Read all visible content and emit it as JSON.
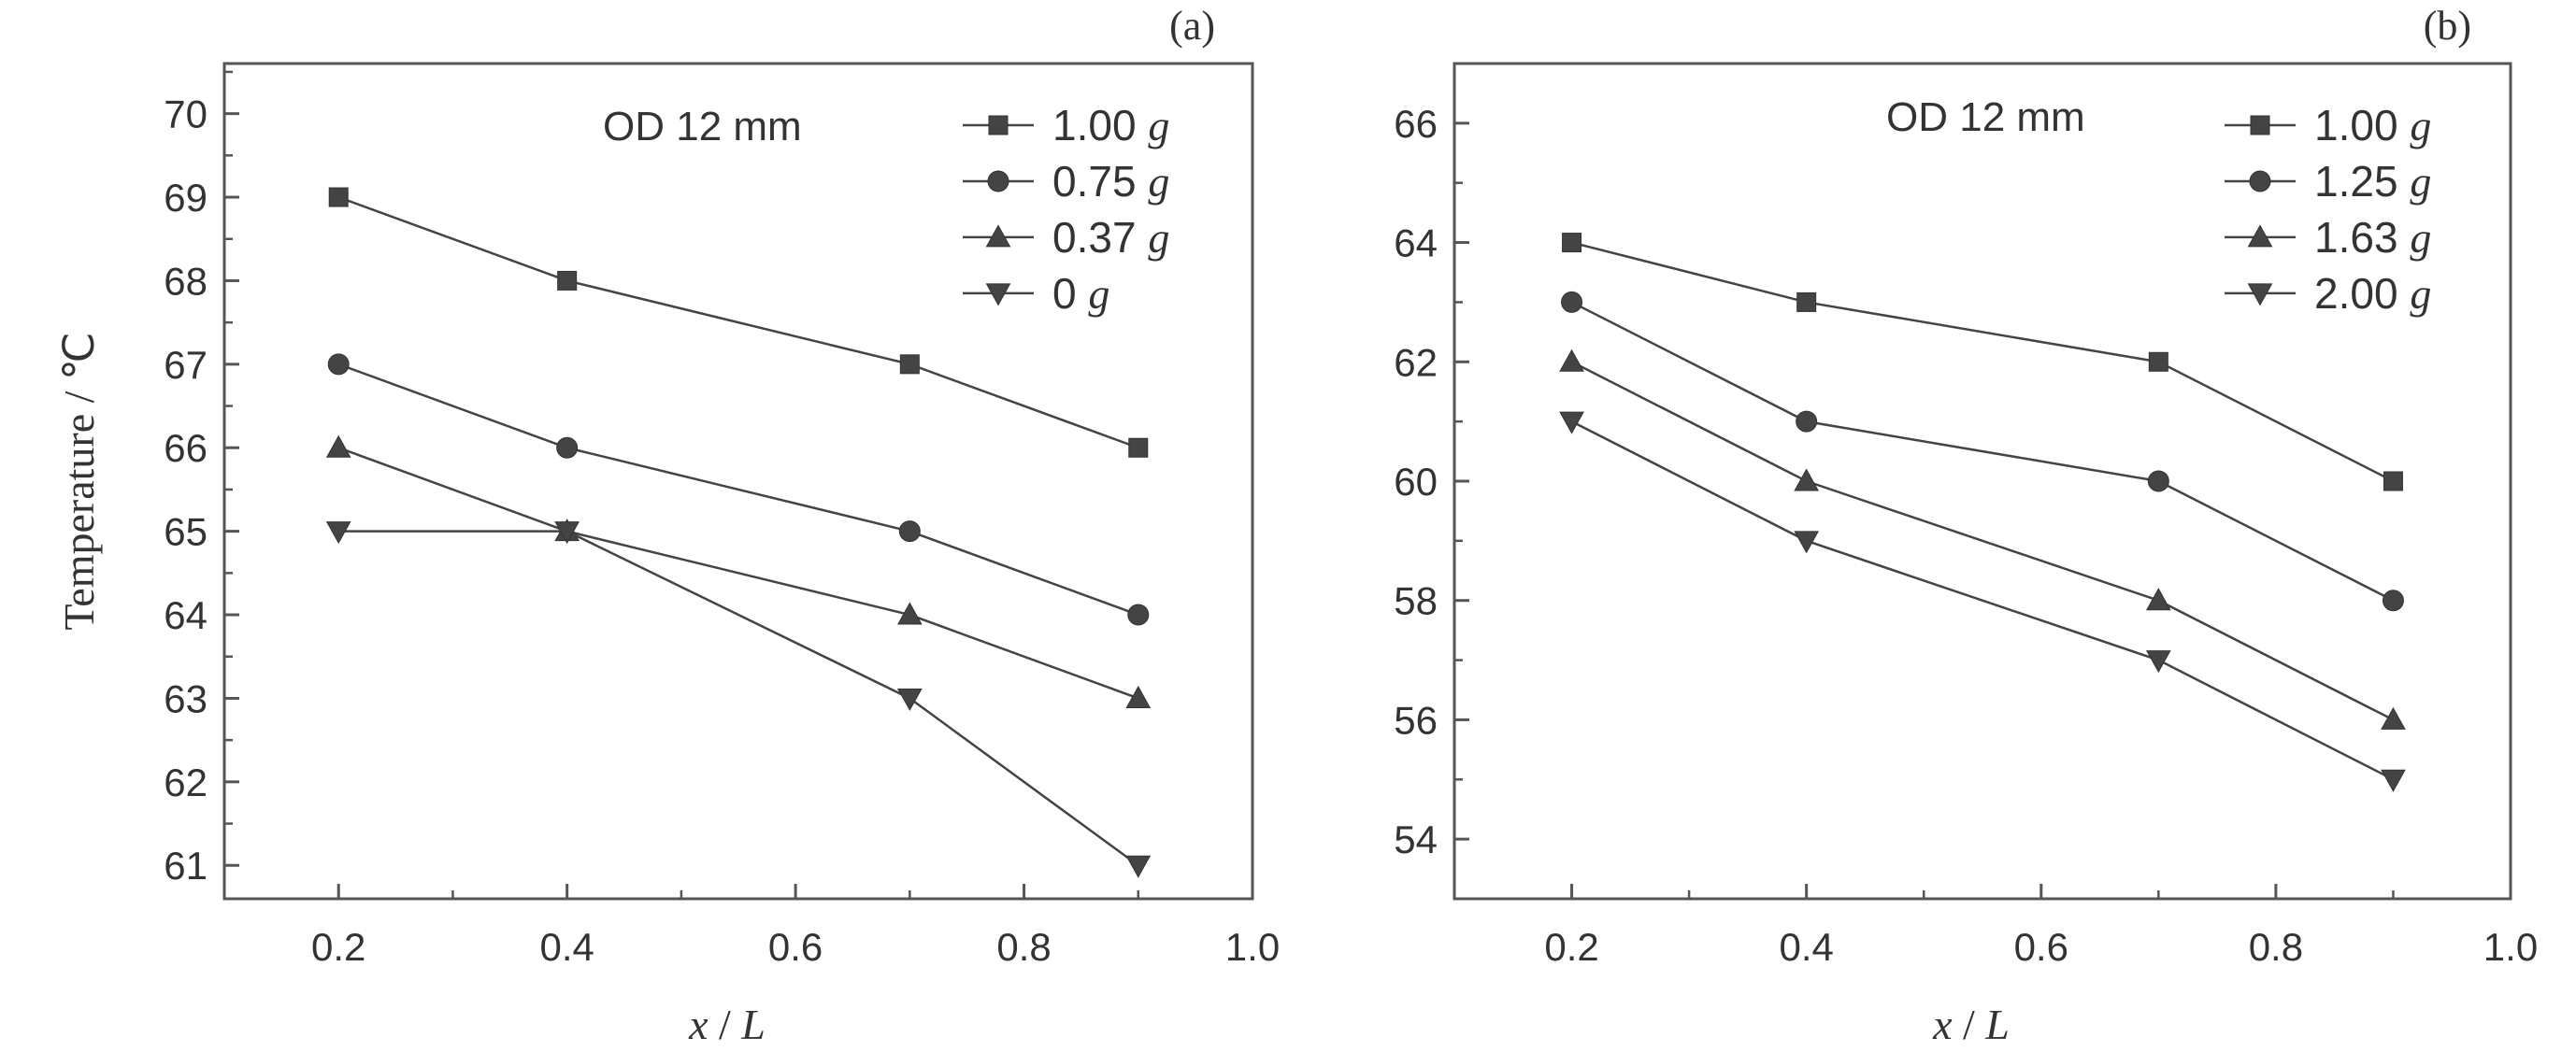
{
  "chart_data": [
    {
      "type": "line",
      "panel_label": "(a)",
      "annotation": "OD 12 mm",
      "xlabel": {
        "var": "x",
        "sep": " / ",
        "ref": "L"
      },
      "ylabel": "Temperature / ℃",
      "xlim": [
        0.1,
        1.0
      ],
      "ylim": [
        60.6,
        70.6
      ],
      "xticks": [
        0.2,
        0.4,
        0.6,
        0.8,
        1.0
      ],
      "xtick_labels": [
        "0.2",
        "0.4",
        "0.6",
        "0.8",
        "1.0"
      ],
      "yticks": [
        61,
        62,
        63,
        64,
        65,
        66,
        67,
        68,
        69,
        70
      ],
      "ytick_labels": [
        "61",
        "62",
        "63",
        "64",
        "65",
        "66",
        "67",
        "68",
        "69",
        "70"
      ],
      "x": [
        0.2,
        0.4,
        0.7,
        0.9
      ],
      "legend_position": "top-right",
      "series": [
        {
          "name_num": "1.00",
          "name_unit": "g",
          "marker": "square",
          "values": [
            69,
            68,
            67,
            66
          ]
        },
        {
          "name_num": "0.75",
          "name_unit": "g",
          "marker": "circle",
          "values": [
            67,
            66,
            65,
            64
          ]
        },
        {
          "name_num": "0.37",
          "name_unit": "g",
          "marker": "triangle-up",
          "values": [
            66,
            65,
            64,
            63
          ]
        },
        {
          "name_num": "0",
          "name_unit": "g",
          "marker": "triangle-down",
          "values": [
            65,
            65,
            63,
            61
          ]
        }
      ]
    },
    {
      "type": "line",
      "panel_label": "(b)",
      "annotation": "OD 12 mm",
      "xlabel": {
        "var": "x",
        "sep": " / ",
        "ref": "L"
      },
      "ylabel": "",
      "xlim": [
        0.1,
        1.0
      ],
      "ylim": [
        53,
        67
      ],
      "xticks": [
        0.2,
        0.4,
        0.6,
        0.8,
        1.0
      ],
      "xtick_labels": [
        "0.2",
        "0.4",
        "0.6",
        "0.8",
        "1.0"
      ],
      "yticks": [
        54,
        56,
        58,
        60,
        62,
        64,
        66
      ],
      "ytick_labels": [
        "54",
        "56",
        "58",
        "60",
        "62",
        "64",
        "66"
      ],
      "x": [
        0.2,
        0.4,
        0.7,
        0.9
      ],
      "legend_position": "top-right",
      "series": [
        {
          "name_num": "1.00",
          "name_unit": "g",
          "marker": "square",
          "values": [
            64,
            63,
            62,
            60
          ]
        },
        {
          "name_num": "1.25",
          "name_unit": "g",
          "marker": "circle",
          "values": [
            63,
            61,
            60,
            58
          ]
        },
        {
          "name_num": "1.63",
          "name_unit": "g",
          "marker": "triangle-up",
          "values": [
            62,
            60,
            58,
            56
          ]
        },
        {
          "name_num": "2.00",
          "name_unit": "g",
          "marker": "triangle-down",
          "values": [
            61,
            59,
            57,
            55
          ]
        }
      ]
    }
  ]
}
